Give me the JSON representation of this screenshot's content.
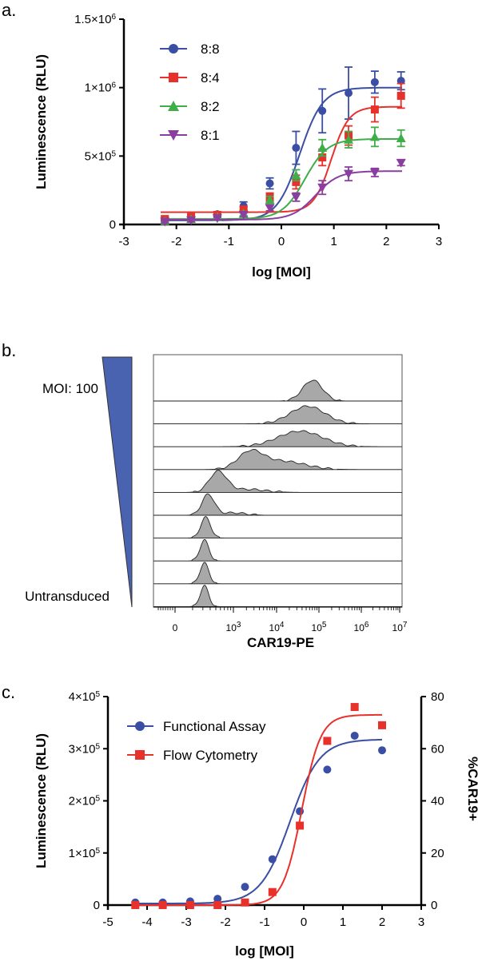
{
  "chart_data": [
    {
      "type": "line",
      "panel": "a.",
      "xlabel": "log [MOI]",
      "ylabel": "Luminescence (RLU)",
      "xlim": [
        -3,
        3
      ],
      "ylim": [
        0,
        1500000
      ],
      "x_ticks": [
        "-3",
        "-2",
        "-1",
        "0",
        "1",
        "2",
        "3"
      ],
      "y_ticks": [
        {
          "base": "0",
          "exp": ""
        },
        {
          "base": "5×10",
          "exp": "5"
        },
        {
          "base": "1×10",
          "exp": "6"
        },
        {
          "base": "1.5×10",
          "exp": "6"
        }
      ],
      "legend_position": "top-left",
      "x": [
        -2.22,
        -1.72,
        -1.22,
        -0.72,
        -0.22,
        0.28,
        0.78,
        1.28,
        1.78,
        2.28
      ],
      "series": [
        {
          "name": "8:8",
          "color": "#3a4ea4",
          "marker": "circle",
          "values": [
            30000,
            50000,
            75000,
            135000,
            300000,
            560000,
            830000,
            960000,
            1040000,
            1050000
          ],
          "errors": [
            20000,
            15000,
            15000,
            30000,
            40000,
            120000,
            160000,
            190000,
            80000,
            65000
          ],
          "fit": {
            "bottom": 30000,
            "top": 1000000,
            "ec50": 0.35,
            "hill": 2.0
          }
        },
        {
          "name": "8:4",
          "color": "#e8312b",
          "marker": "square",
          "values": [
            40000,
            55000,
            70000,
            110000,
            200000,
            310000,
            490000,
            650000,
            840000,
            940000
          ],
          "errors": [
            15000,
            10000,
            15000,
            20000,
            30000,
            50000,
            60000,
            70000,
            90000,
            90000
          ],
          "fit": {
            "bottom": 90000,
            "top": 860000,
            "ec50": 0.95,
            "hill": 2.6
          }
        },
        {
          "name": "8:2",
          "color": "#3fae49",
          "marker": "triangle-up",
          "values": [
            25000,
            40000,
            55000,
            80000,
            180000,
            360000,
            560000,
            620000,
            640000,
            630000
          ],
          "errors": [
            10000,
            10000,
            10000,
            15000,
            25000,
            40000,
            60000,
            60000,
            70000,
            60000
          ],
          "fit": {
            "bottom": 40000,
            "top": 625000,
            "ec50": 0.45,
            "hill": 2.0
          }
        },
        {
          "name": "8:1",
          "color": "#8a3fa0",
          "marker": "triangle-down",
          "values": [
            20000,
            30000,
            45000,
            70000,
            120000,
            200000,
            270000,
            370000,
            380000,
            450000
          ],
          "errors": [
            10000,
            10000,
            10000,
            15000,
            20000,
            30000,
            50000,
            50000,
            30000,
            20000
          ],
          "fit": {
            "bottom": 35000,
            "top": 390000,
            "ec50": 0.65,
            "hill": 2.0
          }
        }
      ]
    },
    {
      "type": "histogram",
      "panel": "b.",
      "xlabel": "CAR19-PE",
      "top_label": "MOI: 100",
      "bottom_label": "Untransduced",
      "x_ticks": [
        {
          "base": "0",
          "exp": ""
        },
        {
          "base": "10",
          "exp": "3"
        },
        {
          "base": "10",
          "exp": "4"
        },
        {
          "base": "10",
          "exp": "5"
        },
        {
          "base": "10",
          "exp": "6"
        },
        {
          "base": "10",
          "exp": "7"
        }
      ],
      "fill_color": "#a8a8a8",
      "wedge_color": "#4a63b0",
      "tracks": [
        {
          "peaks": [
            {
              "pos": 0.64,
              "width": 0.04,
              "height": 1.0
            }
          ]
        },
        {
          "peaks": [
            {
              "pos": 0.62,
              "width": 0.07,
              "height": 0.85
            }
          ]
        },
        {
          "peaks": [
            {
              "pos": 0.59,
              "width": 0.09,
              "height": 0.75
            }
          ]
        },
        {
          "peaks": [
            {
              "pos": 0.39,
              "width": 0.05,
              "height": 0.8
            },
            {
              "pos": 0.52,
              "width": 0.09,
              "height": 0.4
            }
          ]
        },
        {
          "peaks": [
            {
              "pos": 0.26,
              "width": 0.035,
              "height": 1.0
            },
            {
              "pos": 0.38,
              "width": 0.07,
              "height": 0.15
            }
          ]
        },
        {
          "peaks": [
            {
              "pos": 0.22,
              "width": 0.025,
              "height": 1.0
            },
            {
              "pos": 0.32,
              "width": 0.05,
              "height": 0.12
            }
          ]
        },
        {
          "peaks": [
            {
              "pos": 0.21,
              "width": 0.02,
              "height": 1.0
            }
          ]
        },
        {
          "peaks": [
            {
              "pos": 0.205,
              "width": 0.018,
              "height": 1.0
            }
          ]
        },
        {
          "peaks": [
            {
              "pos": 0.205,
              "width": 0.018,
              "height": 1.0
            }
          ]
        },
        {
          "peaks": [
            {
              "pos": 0.205,
              "width": 0.017,
              "height": 1.0
            }
          ]
        }
      ]
    },
    {
      "type": "line",
      "panel": "c.",
      "xlabel": "log [MOI]",
      "ylabel": "Luminescence (RLU)",
      "y2label": "%CAR19+",
      "xlim": [
        -5,
        3
      ],
      "ylim": [
        0,
        400000
      ],
      "y2lim": [
        0,
        80
      ],
      "x_ticks": [
        "-5",
        "-4",
        "-3",
        "-2",
        "-1",
        "0",
        "1",
        "2",
        "3"
      ],
      "y_ticks": [
        {
          "base": "0",
          "exp": ""
        },
        {
          "base": "1×10",
          "exp": "5"
        },
        {
          "base": "2×10",
          "exp": "5"
        },
        {
          "base": "3×10",
          "exp": "5"
        },
        {
          "base": "4×10",
          "exp": "5"
        }
      ],
      "y2_ticks": [
        "0",
        "20",
        "40",
        "60",
        "80"
      ],
      "legend_position": "top-left",
      "series": [
        {
          "name": "Functional Assay",
          "color": "#3a4ea4",
          "marker": "circle",
          "axis": "left",
          "x": [
            -4.3,
            -3.6,
            -2.9,
            -2.2,
            -1.5,
            -0.8,
            -0.1,
            0.6,
            1.3,
            2.0
          ],
          "values": [
            5000,
            5000,
            7000,
            12000,
            35000,
            88000,
            180000,
            260000,
            325000,
            297000
          ],
          "fit": {
            "bottom": 3000,
            "top": 318000,
            "ec50": -0.35,
            "hill": 1.15
          }
        },
        {
          "name": "Flow Cytometry",
          "color": "#e8312b",
          "marker": "square",
          "axis": "right",
          "x": [
            -4.3,
            -3.6,
            -2.9,
            -2.2,
            -1.5,
            -0.8,
            -0.1,
            0.6,
            1.3,
            2.0
          ],
          "values": [
            0,
            0,
            0,
            0,
            1,
            5,
            30.5,
            63,
            76,
            69
          ],
          "fit": {
            "bottom": 0,
            "top": 73,
            "ec50": -0.05,
            "hill": 1.8
          }
        }
      ]
    }
  ]
}
